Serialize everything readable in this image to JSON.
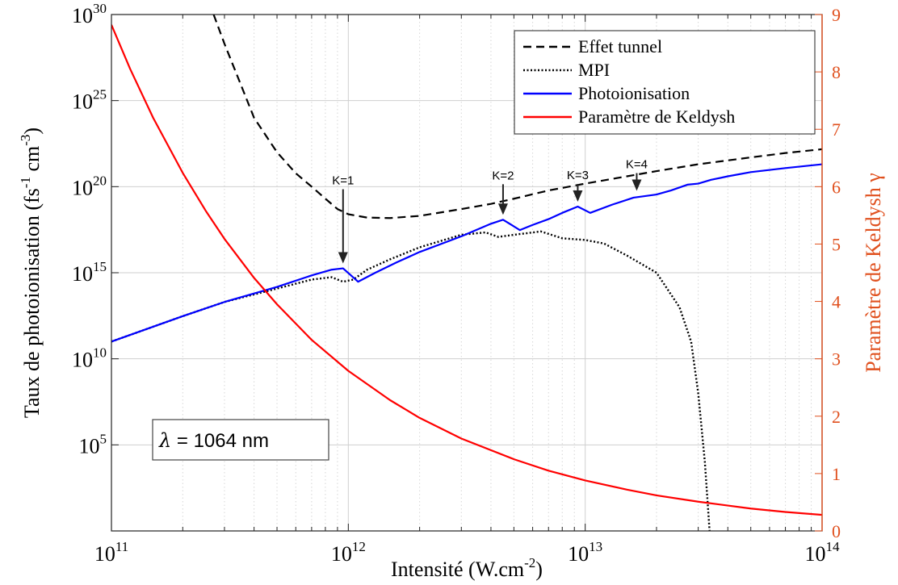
{
  "chart_data": {
    "type": "line",
    "xlabel": "Intensité (W.cm",
    "xlabel_sup": "-2",
    "xlabel_end": ")",
    "ylabel": "Taux de photoionisation (fs",
    "ylabel_sup1": "-1",
    "ylabel_mid": " cm",
    "ylabel_sup2": "-3",
    "ylabel_end": ")",
    "y2label": "Paramètre de Keldysh γ",
    "x_scale": "log",
    "y_scale": "log",
    "xlim": [
      100000000000.0,
      100000000000000.0
    ],
    "ylim": [
      1.0,
      1e+30
    ],
    "y2lim": [
      0,
      9
    ],
    "grid": true,
    "legend_position": "top-right",
    "x_ticks": [
      {
        "base": "10",
        "exp": "11",
        "value": 100000000000.0
      },
      {
        "base": "10",
        "exp": "12",
        "value": 1000000000000.0
      },
      {
        "base": "10",
        "exp": "13",
        "value": 10000000000000.0
      },
      {
        "base": "10",
        "exp": "14",
        "value": 100000000000000.0
      }
    ],
    "y_ticks": [
      {
        "base": "10",
        "exp": "5",
        "value": 100000.0
      },
      {
        "base": "10",
        "exp": "10",
        "value": 10000000000.0
      },
      {
        "base": "10",
        "exp": "15",
        "value": 1000000000000000.0
      },
      {
        "base": "10",
        "exp": "20",
        "value": 1e+20
      },
      {
        "base": "10",
        "exp": "25",
        "value": 1e+25
      },
      {
        "base": "10",
        "exp": "30",
        "value": 1e+30
      }
    ],
    "y2_ticks": [
      "0",
      "1",
      "2",
      "3",
      "4",
      "5",
      "6",
      "7",
      "8",
      "9"
    ],
    "series": [
      {
        "name": "Effet tunnel",
        "axis": "left",
        "style": "dashed",
        "color": "#000000",
        "x": [
          270000000000.0,
          300000000000.0,
          350000000000.0,
          400000000000.0,
          500000000000.0,
          600000000000.0,
          700000000000.0,
          800000000000.0,
          900000000000.0,
          1000000000000.0,
          1200000000000.0,
          1500000000000.0,
          2000000000000.0,
          3000000000000.0,
          4000000000000.0,
          5000000000000.0,
          7000000000000.0,
          10000000000000.0,
          15000000000000.0,
          20000000000000.0,
          30000000000000.0,
          50000000000000.0,
          70000000000000.0,
          100000000000000.0
        ],
        "y": [
          1e+30,
          2e+28,
          1e+26,
          1e+24,
          1e+22,
          6e+20,
          1e+20,
          2e+19,
          5e+18,
          2.5e+18,
          1.6e+18,
          1.5e+18,
          2e+18,
          5e+18,
          1e+19,
          2e+19,
          6e+19,
          1.5e+20,
          4e+20,
          8e+20,
          2e+21,
          5e+21,
          9e+21,
          1.5e+22
        ]
      },
      {
        "name": "MPI",
        "axis": "left",
        "style": "dotted",
        "color": "#000000",
        "x": [
          100000000000.0,
          200000000000.0,
          300000000000.0,
          500000000000.0,
          700000000000.0,
          850000000000.0,
          950000000000.0,
          1050000000000.0,
          1200000000000.0,
          1500000000000.0,
          2000000000000.0,
          3000000000000.0,
          3800000000000.0,
          4300000000000.0,
          5000000000000.0,
          6500000000000.0,
          8000000000000.0,
          10000000000000.0,
          12000000000000.0,
          15000000000000.0,
          20000000000000.0,
          25000000000000.0,
          28000000000000.0,
          30000000000000.0,
          32000000000000.0,
          33500000000000.0
        ],
        "y": [
          100000000000.0,
          3000000000000.0,
          20000000000000.0,
          120000000000000.0,
          400000000000000.0,
          550000000000000.0,
          300000000000000.0,
          400000000000000.0,
          1500000000000000.0,
          6000000000000000.0,
          3e+16,
          1.6e+17,
          2.2e+17,
          1.2e+17,
          1.6e+17,
          2.5e+17,
          1e+17,
          8e+16,
          5e+16,
          1e+16,
          1000000000000000.0,
          10000000000000.0,
          100000000000.0,
          100000000.0,
          10000.0,
          1.0
        ]
      },
      {
        "name": "Photoionisation",
        "axis": "left",
        "style": "solid",
        "color": "#0000ff",
        "x": [
          100000000000.0,
          200000000000.0,
          300000000000.0,
          500000000000.0,
          700000000000.0,
          850000000000.0,
          950000000000.0,
          1100000000000.0,
          1300000000000.0,
          1600000000000.0,
          2000000000000.0,
          3000000000000.0,
          4000000000000.0,
          4500000000000.0,
          5300000000000.0,
          6000000000000.0,
          7000000000000.0,
          8000000000000.0,
          9300000000000.0,
          10500000000000.0,
          13000000000000.0,
          16000000000000.0,
          20000000000000.0,
          23000000000000.0,
          27000000000000.0,
          30000000000000.0,
          34000000000000.0,
          40000000000000.0,
          50000000000000.0,
          70000000000000.0,
          100000000000000.0
        ],
        "y": [
          100000000000.0,
          3000000000000.0,
          20000000000000.0,
          150000000000000.0,
          700000000000000.0,
          1500000000000000.0,
          1800000000000000.0,
          300000000000000.0,
          1000000000000000.0,
          4000000000000000.0,
          1.6e+16,
          1.3e+17,
          7e+17,
          1.2e+18,
          3e+17,
          6e+17,
          1.3e+18,
          3e+18,
          7e+18,
          3e+18,
          9e+18,
          2.3e+19,
          3.5e+19,
          6e+19,
          1.3e+20,
          1.5e+20,
          2.5e+20,
          4e+20,
          7e+20,
          1.2e+21,
          2e+21
        ]
      },
      {
        "name": "Paramètre de Keldysh",
        "axis": "right",
        "style": "solid",
        "color": "#ff0000",
        "x": [
          100000000000.0,
          120000000000.0,
          150000000000.0,
          200000000000.0,
          250000000000.0,
          300000000000.0,
          400000000000.0,
          500000000000.0,
          700000000000.0,
          1000000000000.0,
          1500000000000.0,
          2000000000000.0,
          3000000000000.0,
          5000000000000.0,
          7000000000000.0,
          10000000000000.0,
          15000000000000.0,
          20000000000000.0,
          30000000000000.0,
          50000000000000.0,
          70000000000000.0,
          100000000000000.0
        ],
        "y": [
          8.82,
          8.05,
          7.2,
          6.24,
          5.58,
          5.09,
          4.41,
          3.95,
          3.33,
          2.79,
          2.28,
          1.97,
          1.61,
          1.25,
          1.05,
          0.88,
          0.72,
          0.62,
          0.51,
          0.39,
          0.33,
          0.28
        ]
      }
    ],
    "annotations": [
      {
        "text": "K=1",
        "x": 950000000000.0,
        "y_tip": 1800000000000000.0,
        "y_label": 3e+21,
        "arrow": "long"
      },
      {
        "text": "K=2",
        "x": 4500000000000.0,
        "y_tip": 1.2e+18,
        "y_label": 5e+20,
        "arrow": "medium"
      },
      {
        "text": "K=3",
        "x": 9300000000000.0,
        "y_tip": 7e+18,
        "y_label": 8e+19,
        "arrow": "short"
      },
      {
        "text": "K=4",
        "x": 16500000000000.0,
        "y_tip": 3e+19,
        "y_label": 2e+20,
        "arrow": "short"
      }
    ],
    "box_label": {
      "symbol": "λ",
      "text": " = 1064 nm"
    }
  }
}
